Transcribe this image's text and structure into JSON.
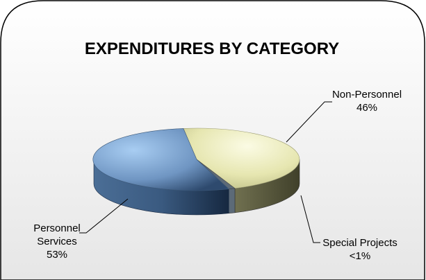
{
  "chart_data": {
    "type": "pie",
    "title": "EXPENDITURES BY CATEGORY",
    "series": [
      {
        "name": "Non-Personnel",
        "value_label": "46%",
        "value": 46,
        "color": "#eeeeb4"
      },
      {
        "name": "Special Projects",
        "value_label": "<1%",
        "value": 1,
        "color": "#5c6a78"
      },
      {
        "name": "Personnel Services",
        "value_label": "53%",
        "value": 53,
        "color": "#7fa6d6"
      }
    ],
    "style": "3d-pie",
    "legend": "none"
  }
}
